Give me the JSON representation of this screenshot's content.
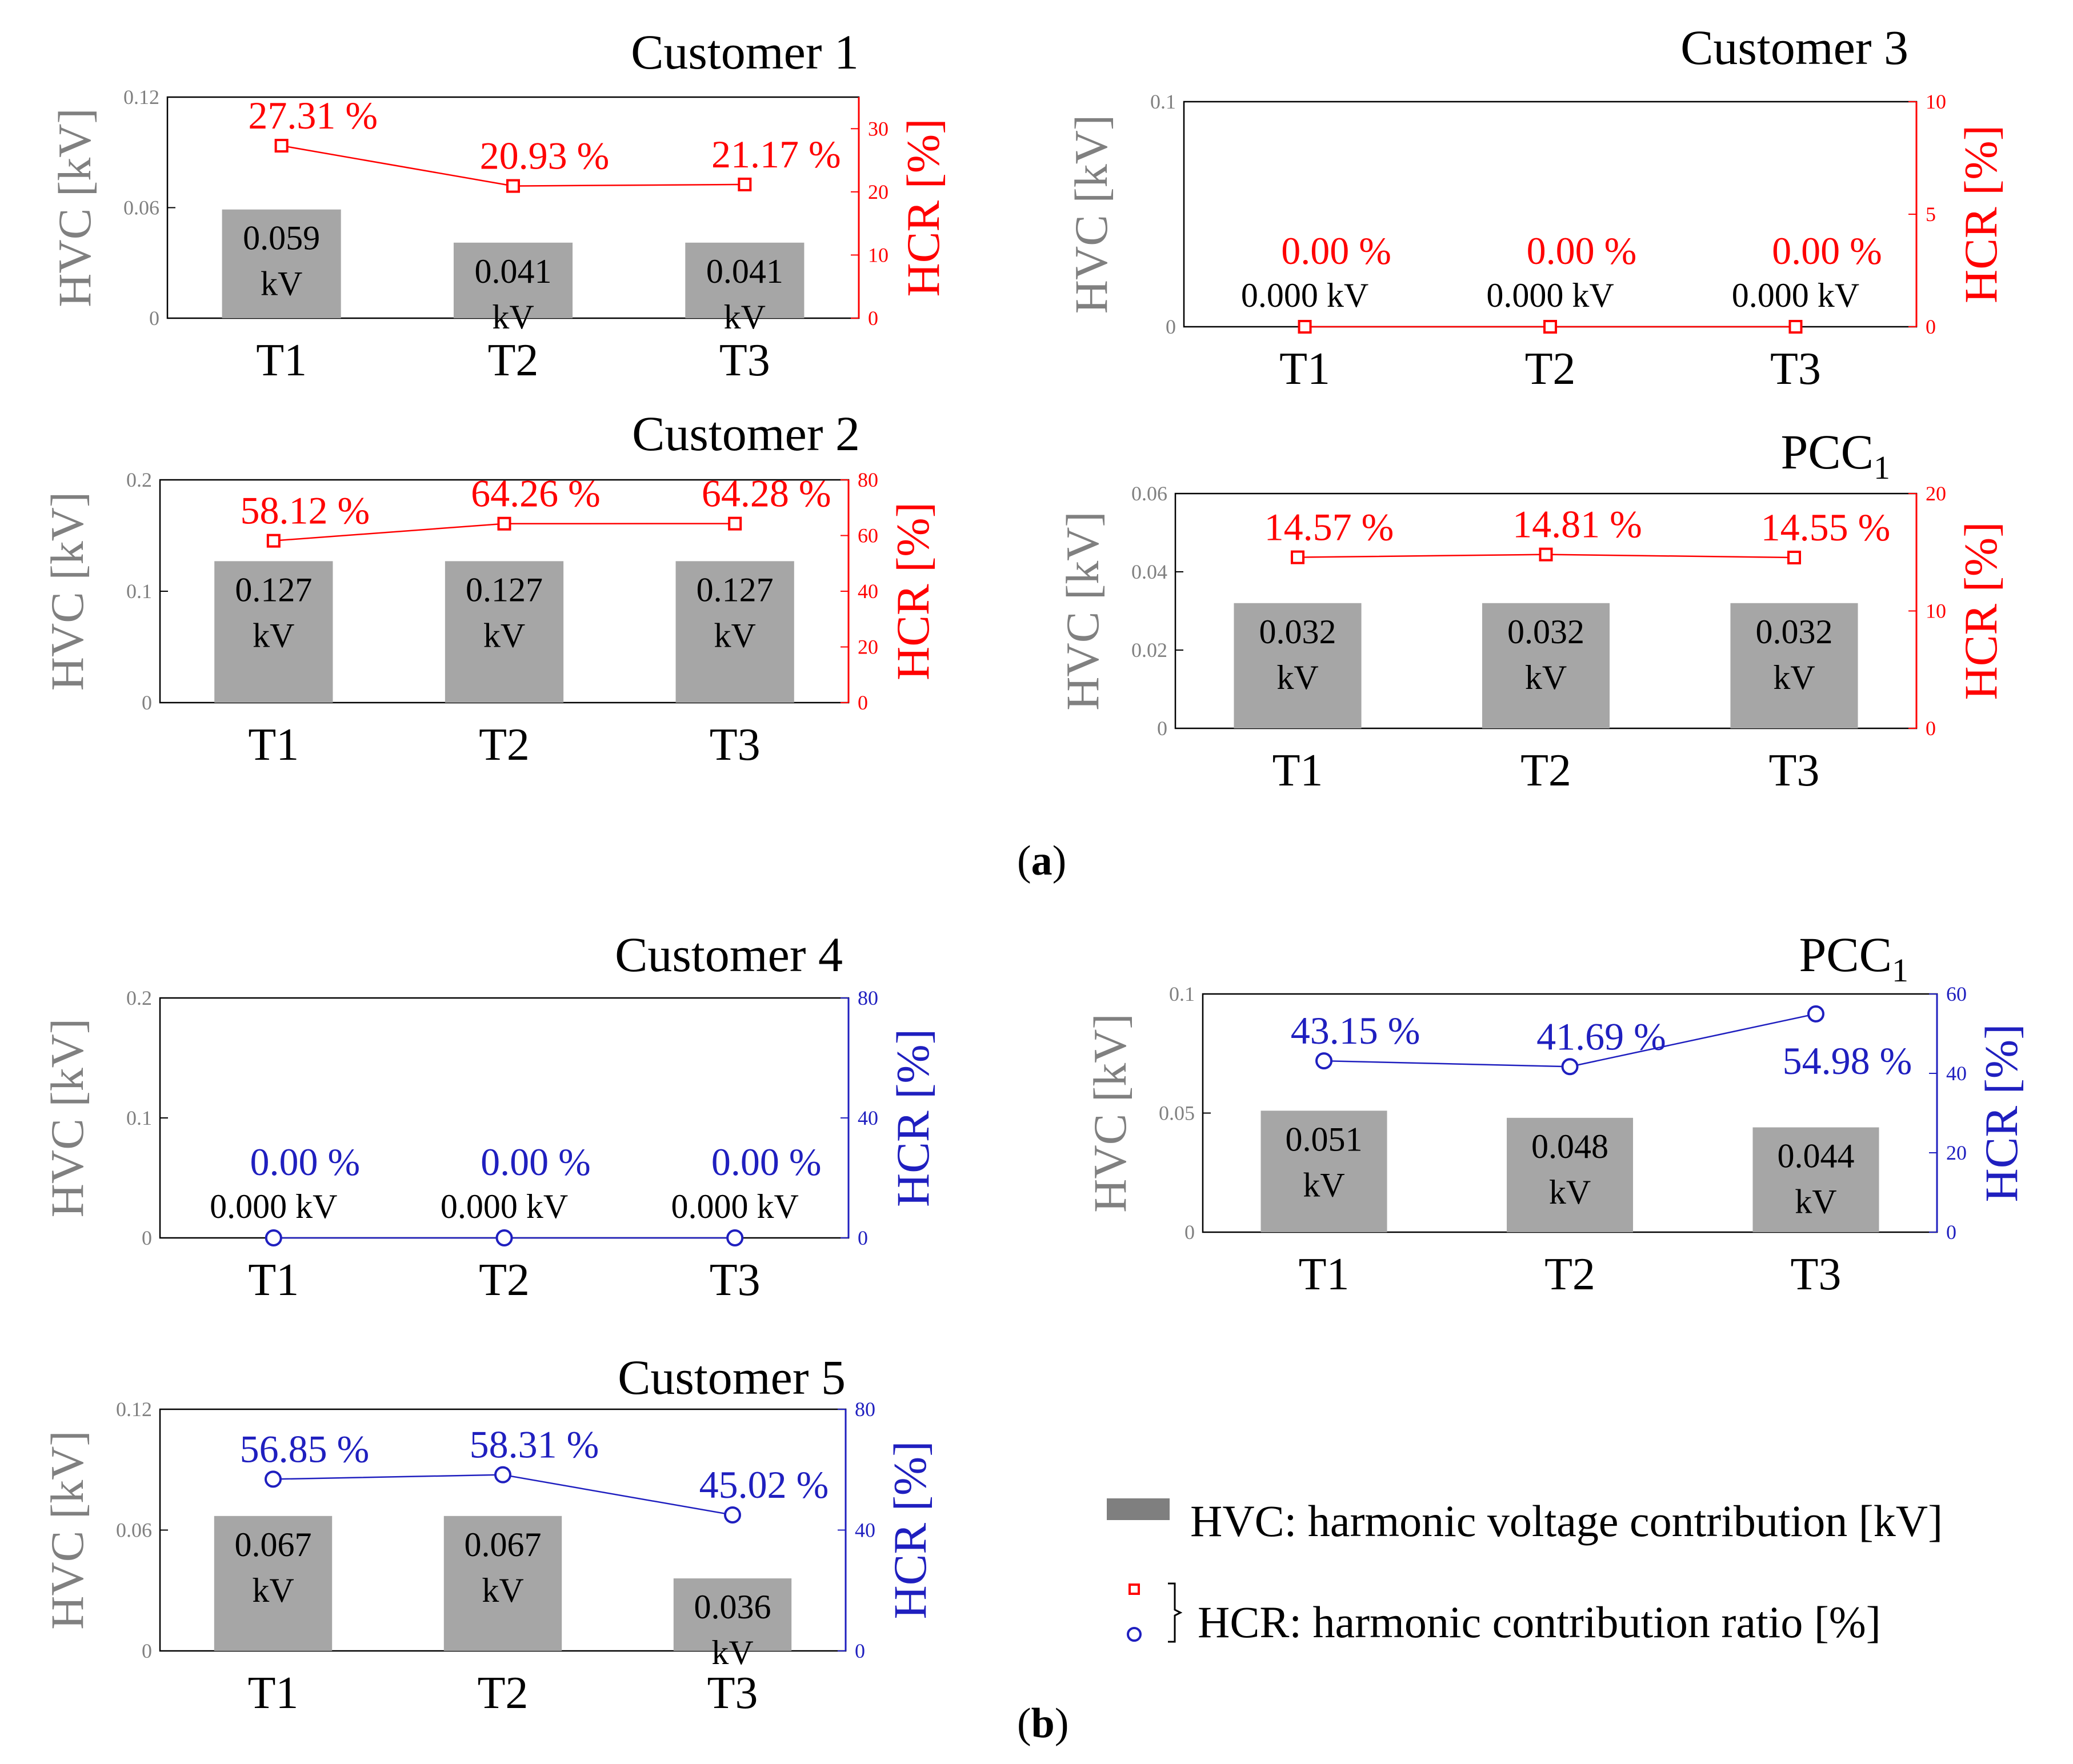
{
  "colors": {
    "bar": "#a6a6a6",
    "hvc_axis": "#808080",
    "red": "#ff0000",
    "blue": "#1f1fbf",
    "black": "#000000"
  },
  "captions": {
    "a": "a",
    "b": "b"
  },
  "legend": {
    "hvc": "HVC:  harmonic voltage contribution [kV]",
    "hcr": "HCR:  harmonic contribution ratio [%]"
  },
  "chart_data": [
    {
      "id": "a-customer1",
      "type": "bar+line",
      "title": "Customer 1",
      "title_sub": "",
      "categories": [
        "T1",
        "T2",
        "T3"
      ],
      "hvc": [
        0.059,
        0.041,
        0.041
      ],
      "hvc_labels": [
        "0.059",
        "0.041",
        "0.041"
      ],
      "hvc_unit": "kV",
      "hcr": [
        27.31,
        20.93,
        21.17
      ],
      "hcr_labels": [
        "27.31 %",
        "20.93 %",
        "21.17 %"
      ],
      "ylabel_left": "HVC [kV]",
      "ylabel_right": "HCR [%]",
      "ylim_left": [
        0,
        0.12
      ],
      "yticks_left": [
        "0",
        "0.06",
        "0.12"
      ],
      "ylim_right": [
        0,
        35
      ],
      "yticks_right": [
        "0",
        "10",
        "20",
        "30"
      ],
      "marker": "square",
      "color": "red"
    },
    {
      "id": "a-customer2",
      "type": "bar+line",
      "title": "Customer 2",
      "title_sub": "",
      "categories": [
        "T1",
        "T2",
        "T3"
      ],
      "hvc": [
        0.127,
        0.127,
        0.127
      ],
      "hvc_labels": [
        "0.127",
        "0.127",
        "0.127"
      ],
      "hvc_unit": "kV",
      "hcr": [
        58.12,
        64.26,
        64.28
      ],
      "hcr_labels": [
        "58.12 %",
        "64.26 %",
        "64.28 %"
      ],
      "ylabel_left": "HVC [kV]",
      "ylabel_right": "HCR [%]",
      "ylim_left": [
        0,
        0.2
      ],
      "yticks_left": [
        "0",
        "0.1",
        "0.2"
      ],
      "ylim_right": [
        0,
        80
      ],
      "yticks_right": [
        "0",
        "20",
        "40",
        "60",
        "80"
      ],
      "marker": "square",
      "color": "red"
    },
    {
      "id": "a-customer3",
      "type": "bar+line",
      "title": "Customer 3",
      "title_sub": "",
      "categories": [
        "T1",
        "T2",
        "T3"
      ],
      "hvc": [
        0.0,
        0.0,
        0.0
      ],
      "hvc_labels": [
        "0.000 kV",
        "0.000 kV",
        "0.000 kV"
      ],
      "hvc_unit": "",
      "hcr": [
        0.0,
        0.0,
        0.0
      ],
      "hcr_labels": [
        "0.00 %",
        "0.00 %",
        "0.00 %"
      ],
      "ylabel_left": "HVC [kV]",
      "ylabel_right": "HCR [%]",
      "ylim_left": [
        0,
        0.1
      ],
      "yticks_left": [
        "0",
        "0.1"
      ],
      "ylim_right": [
        0,
        10
      ],
      "yticks_right": [
        "0",
        "5",
        "10"
      ],
      "marker": "square",
      "color": "red"
    },
    {
      "id": "a-pcc1",
      "type": "bar+line",
      "title": "PCC",
      "title_sub": "1",
      "categories": [
        "T1",
        "T2",
        "T3"
      ],
      "hvc": [
        0.032,
        0.032,
        0.032
      ],
      "hvc_labels": [
        "0.032",
        "0.032",
        "0.032"
      ],
      "hvc_unit": "kV",
      "hcr": [
        14.57,
        14.81,
        14.55
      ],
      "hcr_labels": [
        "14.57 %",
        "14.81 %",
        "14.55 %"
      ],
      "ylabel_left": "HVC [kV]",
      "ylabel_right": "HCR [%]",
      "ylim_left": [
        0,
        0.06
      ],
      "yticks_left": [
        "0",
        "0.02",
        "0.04",
        "0.06"
      ],
      "ylim_right": [
        0,
        20
      ],
      "yticks_right": [
        "0",
        "10",
        "20"
      ],
      "marker": "square",
      "color": "red"
    },
    {
      "id": "b-customer4",
      "type": "bar+line",
      "title": "Customer 4",
      "title_sub": "",
      "categories": [
        "T1",
        "T2",
        "T3"
      ],
      "hvc": [
        0.0,
        0.0,
        0.0
      ],
      "hvc_labels": [
        "0.000 kV",
        "0.000 kV",
        "0.000 kV"
      ],
      "hvc_unit": "",
      "hcr": [
        0.0,
        0.0,
        0.0
      ],
      "hcr_labels": [
        "0.00 %",
        "0.00 %",
        "0.00 %"
      ],
      "ylabel_left": "HVC [kV]",
      "ylabel_right": "HCR [%]",
      "ylim_left": [
        0,
        0.2
      ],
      "yticks_left": [
        "0",
        "0.1",
        "0.2"
      ],
      "ylim_right": [
        0,
        80
      ],
      "yticks_right": [
        "0",
        "40",
        "80"
      ],
      "marker": "circle",
      "color": "blue"
    },
    {
      "id": "b-pcc1",
      "type": "bar+line",
      "title": "PCC",
      "title_sub": "1",
      "categories": [
        "T1",
        "T2",
        "T3"
      ],
      "hvc": [
        0.051,
        0.048,
        0.044
      ],
      "hvc_labels": [
        "0.051",
        "0.048",
        "0.044"
      ],
      "hvc_unit": "kV",
      "hcr": [
        43.15,
        41.69,
        54.98
      ],
      "hcr_labels": [
        "43.15 %",
        "41.69 %",
        "54.98 %"
      ],
      "ylabel_left": "HVC [kV]",
      "ylabel_right": "HCR [%]",
      "ylim_left": [
        0,
        0.1
      ],
      "yticks_left": [
        "0",
        "0.05",
        "0.1"
      ],
      "ylim_right": [
        0,
        60
      ],
      "yticks_right": [
        "0",
        "20",
        "40",
        "60"
      ],
      "marker": "circle",
      "color": "blue"
    },
    {
      "id": "b-customer5",
      "type": "bar+line",
      "title": "Customer 5",
      "title_sub": "",
      "categories": [
        "T1",
        "T2",
        "T3"
      ],
      "hvc": [
        0.067,
        0.067,
        0.036
      ],
      "hvc_labels": [
        "0.067",
        "0.067",
        "0.036"
      ],
      "hvc_unit": "kV",
      "hcr": [
        56.85,
        58.31,
        45.02
      ],
      "hcr_labels": [
        "56.85 %",
        "58.31 %",
        "45.02 %"
      ],
      "ylabel_left": "HVC [kV]",
      "ylabel_right": "HCR [%]",
      "ylim_left": [
        0,
        0.12
      ],
      "yticks_left": [
        "0",
        "0.06",
        "0.12"
      ],
      "ylim_right": [
        0,
        80
      ],
      "yticks_right": [
        "0",
        "40",
        "80"
      ],
      "marker": "circle",
      "color": "blue"
    }
  ]
}
